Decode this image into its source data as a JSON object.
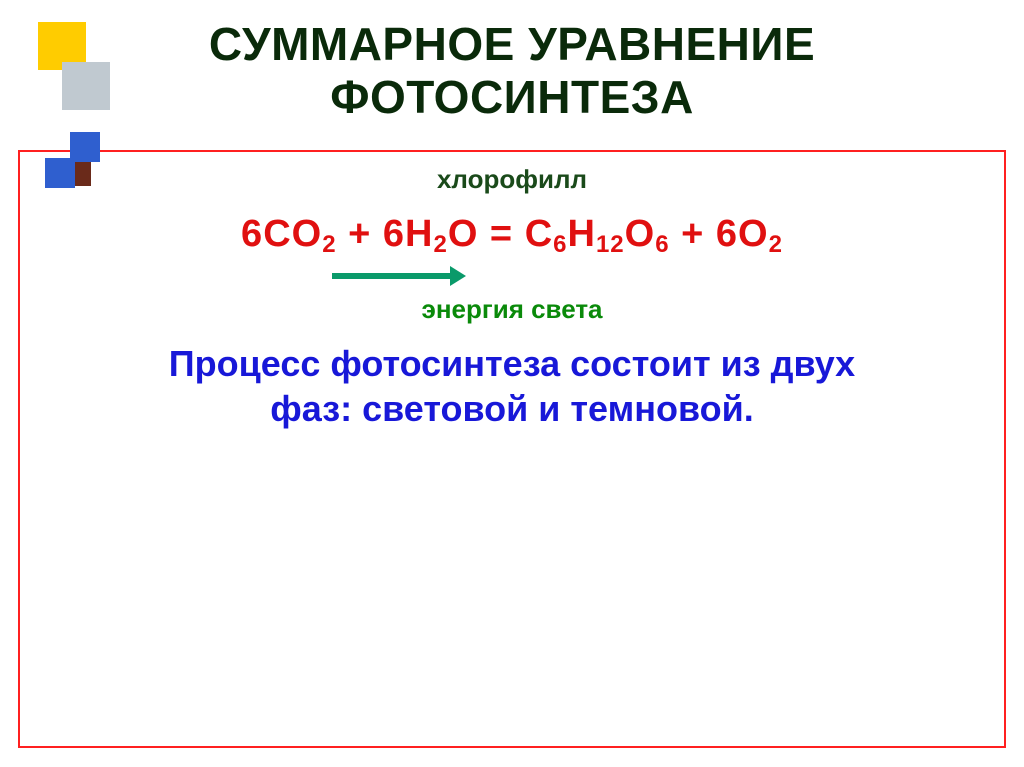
{
  "title": {
    "line1": "СУММАРНОЕ УРАВНЕНИЕ",
    "line2": "ФОТОСИНТЕЗА",
    "color": "#0a2a0a",
    "fontsize": 46
  },
  "decorations": {
    "yellow": "#ffcc00",
    "grey": "#c0c9d0",
    "blue": "#2f5fcf",
    "maroon": "#6a2a1a"
  },
  "box": {
    "border_color": "#ff2020"
  },
  "chlorophyll": {
    "text": "хлорофилл",
    "color": "#1a4a1a",
    "fontsize": 26
  },
  "equation": {
    "reactant1_coef": "6",
    "reactant1_base": "CO",
    "reactant1_sub": "2",
    "plus1": " + ",
    "reactant2_coef": "6",
    "reactant2_base": "H",
    "reactant2_sub": "2",
    "reactant2_base2": "O",
    "equals": "  =  ",
    "product1_base": "C",
    "product1_sub1": "6",
    "product1_base2": "H",
    "product1_sub2": "12",
    "product1_base3": "O",
    "product1_sub3": "6",
    "plus2": "  +  ",
    "product2_coef": "6",
    "product2_base": "O",
    "product2_sub": "2",
    "color": "#e01010",
    "fontsize": 38
  },
  "arrow": {
    "color": "#0a9a6a"
  },
  "energy": {
    "text": "энергия света",
    "color": "#0a8a0a",
    "fontsize": 26
  },
  "phases": {
    "line1": "Процесс фотосинтеза состоит из двух",
    "line2": "фаз: световой и темновой.",
    "color": "#1818d8",
    "fontsize": 36
  }
}
